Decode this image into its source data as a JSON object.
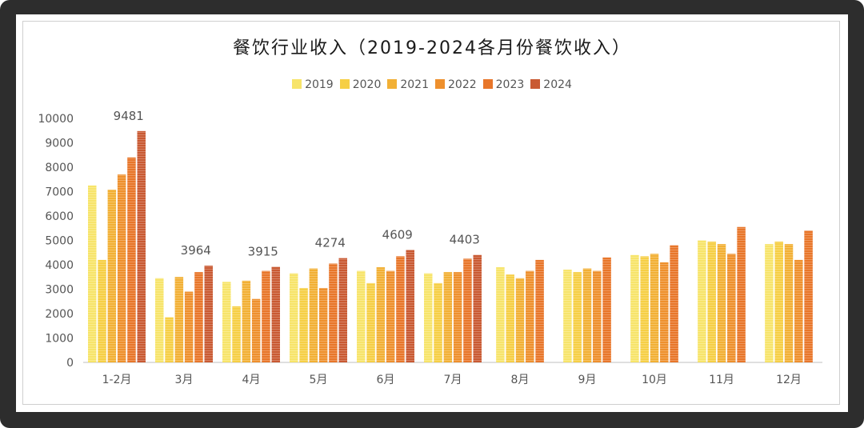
{
  "chart_data": {
    "type": "bar",
    "title": "餐饮行业收入（2019-2024各月份餐饮收入）",
    "categories": [
      "1-2月",
      "3月",
      "4月",
      "5月",
      "6月",
      "7月",
      "8月",
      "9月",
      "10月",
      "11月",
      "12月"
    ],
    "ylim": [
      0,
      10000
    ],
    "yticks": [
      0,
      1000,
      2000,
      3000,
      4000,
      5000,
      6000,
      7000,
      8000,
      9000,
      10000
    ],
    "legend_position": "top",
    "series": [
      {
        "name": "2019",
        "color": "#f7e46a",
        "values": [
          7250,
          3450,
          3300,
          3650,
          3750,
          3650,
          3900,
          3800,
          4400,
          5000,
          4850
        ]
      },
      {
        "name": "2020",
        "color": "#f6cf45",
        "values": [
          4200,
          1850,
          2300,
          3050,
          3250,
          3250,
          3600,
          3700,
          4350,
          4950,
          4950
        ]
      },
      {
        "name": "2021",
        "color": "#f2b035",
        "values": [
          7080,
          3500,
          3350,
          3850,
          3900,
          3700,
          3450,
          3850,
          4450,
          4850,
          4850
        ]
      },
      {
        "name": "2022",
        "color": "#ee902d",
        "values": [
          7700,
          2900,
          2600,
          3050,
          3750,
          3700,
          3750,
          3750,
          4100,
          4450,
          4200
        ]
      },
      {
        "name": "2023",
        "color": "#e8762a",
        "values": [
          8400,
          3700,
          3750,
          4050,
          4350,
          4250,
          4200,
          4300,
          4800,
          5550,
          5400
        ]
      },
      {
        "name": "2024",
        "color": "#c95a33",
        "values": [
          9481,
          3964,
          3915,
          4274,
          4609,
          4403,
          null,
          null,
          null,
          null,
          null
        ]
      }
    ],
    "data_labels": [
      {
        "category": "1-2月",
        "text": "9481"
      },
      {
        "category": "3月",
        "text": "3964"
      },
      {
        "category": "4月",
        "text": "3915"
      },
      {
        "category": "5月",
        "text": "4274"
      },
      {
        "category": "6月",
        "text": "4609"
      },
      {
        "category": "7月",
        "text": "4403"
      }
    ]
  }
}
